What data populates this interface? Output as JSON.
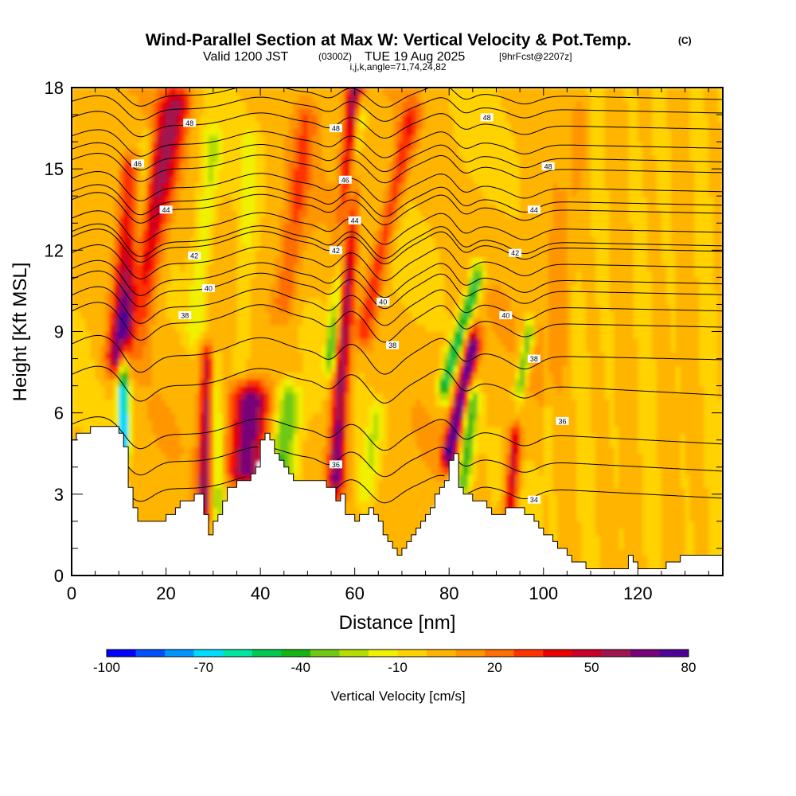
{
  "chart_data": {
    "type": "heatmap",
    "title": "Wind-Parallel Section at Max W: Vertical Velocity & Pot.Temp.",
    "title_mark": "(C)",
    "subtitle_prefix": "Valid 1200 JST",
    "subtitle_utc": "(0300Z)",
    "subtitle_date": "TUE 19 Aug 2025",
    "subtitle_fcst": "[9hrFcst@2207z]",
    "subtitle_line2": "i,j,k,angle=71,74,24,82",
    "xlabel": "Distance [nm]",
    "ylabel": "Height [Kft MSL]",
    "xlim": [
      0,
      138
    ],
    "ylim": [
      0,
      18
    ],
    "x_ticks": [
      "0",
      "20",
      "40",
      "60",
      "80",
      "100",
      "120"
    ],
    "y_ticks": [
      "0",
      "3",
      "6",
      "9",
      "12",
      "15",
      "18"
    ],
    "colorbar": {
      "label": "Vertical Velocity [cm/s]",
      "tick_labels": [
        "-100",
        "-70",
        "-40",
        "-10",
        "20",
        "50",
        "80"
      ],
      "colors": [
        "#0000ff",
        "#0050ff",
        "#0096ff",
        "#00dcff",
        "#00e6a0",
        "#00c850",
        "#14b414",
        "#6ec814",
        "#b4dc00",
        "#f0f000",
        "#ffd200",
        "#ffb400",
        "#ff9600",
        "#ff6e00",
        "#ff3200",
        "#eb0000",
        "#c80028",
        "#a01450",
        "#780078",
        "#50009a"
      ]
    },
    "terrain_kft": [
      [
        0,
        5.0
      ],
      [
        2,
        5.3
      ],
      [
        5,
        5.5
      ],
      [
        8,
        5.6
      ],
      [
        10,
        5.3
      ],
      [
        11,
        4.8
      ],
      [
        12,
        3.2
      ],
      [
        13,
        2.4
      ],
      [
        14,
        2.0
      ],
      [
        18,
        2.0
      ],
      [
        20,
        2.2
      ],
      [
        22,
        2.5
      ],
      [
        24,
        2.8
      ],
      [
        27,
        3.0
      ],
      [
        28,
        2.2
      ],
      [
        29,
        1.6
      ],
      [
        31,
        2.2
      ],
      [
        33,
        3.2
      ],
      [
        35,
        3.4
      ],
      [
        37,
        3.5
      ],
      [
        39,
        4.1
      ],
      [
        40,
        5.0
      ],
      [
        41,
        5.3
      ],
      [
        43,
        4.6
      ],
      [
        45,
        4.0
      ],
      [
        47,
        3.6
      ],
      [
        50,
        3.4
      ],
      [
        53,
        3.5
      ],
      [
        55,
        3.2
      ],
      [
        56,
        2.8
      ],
      [
        57,
        3.0
      ],
      [
        58,
        2.3
      ],
      [
        60,
        2.0
      ],
      [
        63,
        2.5
      ],
      [
        65,
        2.0
      ],
      [
        66,
        1.4
      ],
      [
        68,
        1.0
      ],
      [
        69,
        0.8
      ],
      [
        70,
        0.9
      ],
      [
        71,
        1.3
      ],
      [
        73,
        1.8
      ],
      [
        75,
        2.2
      ],
      [
        77,
        3.0
      ],
      [
        79,
        3.6
      ],
      [
        80,
        4.2
      ],
      [
        81,
        4.4
      ],
      [
        82,
        3.3
      ],
      [
        84,
        2.9
      ],
      [
        86,
        2.8
      ],
      [
        88,
        2.5
      ],
      [
        90,
        2.2
      ],
      [
        92,
        2.4
      ],
      [
        94,
        2.6
      ],
      [
        96,
        2.3
      ],
      [
        98,
        2.0
      ],
      [
        100,
        1.6
      ],
      [
        103,
        1.1
      ],
      [
        106,
        0.6
      ],
      [
        109,
        0.3
      ],
      [
        112,
        0.3
      ],
      [
        117,
        0.3
      ],
      [
        118,
        0.8
      ],
      [
        120,
        0.3
      ],
      [
        125,
        0.3
      ],
      [
        128,
        0.6
      ],
      [
        130,
        0.8
      ],
      [
        133,
        0.8
      ],
      [
        138,
        0.8
      ]
    ],
    "updrafts": [
      {
        "x0": 11,
        "x1": 22,
        "h0": 8,
        "h1": 17.5,
        "w": 3.5,
        "v": 55
      },
      {
        "x0": 28,
        "x1": 29,
        "h0": 2.5,
        "h1": 8,
        "w": 1.5,
        "v": 60
      },
      {
        "x0": 37,
        "x1": 38,
        "h0": 3.8,
        "h1": 6.5,
        "w": 4.0,
        "v": 70
      },
      {
        "x0": 56,
        "x1": 60,
        "h0": 3.5,
        "h1": 18,
        "w": 1.8,
        "v": 65
      },
      {
        "x0": 80,
        "x1": 85,
        "h0": 4.5,
        "h1": 8.5,
        "w": 1.6,
        "v": 75
      },
      {
        "x0": 93,
        "x1": 94,
        "h0": 2.5,
        "h1": 5,
        "w": 1.4,
        "v": 50
      },
      {
        "x0": 10,
        "x1": 12,
        "h0": 8,
        "h1": 15,
        "w": 2.0,
        "v": 35
      },
      {
        "x0": 62,
        "x1": 72,
        "h0": 9,
        "h1": 17,
        "w": 2.0,
        "v": 30
      },
      {
        "x0": 45,
        "x1": 50,
        "h0": 10,
        "h1": 17,
        "w": 2.5,
        "v": 22
      },
      {
        "x0": 100,
        "x1": 108,
        "h0": 7,
        "h1": 17,
        "w": 3.0,
        "v": 10
      }
    ],
    "downdrafts": [
      {
        "x0": 11,
        "x1": 11,
        "h0": 4.8,
        "h1": 8,
        "w": 1.2,
        "v": -80
      },
      {
        "x0": 13,
        "x1": 16,
        "h0": 8,
        "h1": 16,
        "w": 1.5,
        "v": -25
      },
      {
        "x0": 31,
        "x1": 30,
        "h0": 2.5,
        "h1": 8,
        "w": 1.5,
        "v": -30
      },
      {
        "x0": 44,
        "x1": 46,
        "h0": 3.5,
        "h1": 6.5,
        "w": 3.0,
        "v": -40
      },
      {
        "x0": 55,
        "x1": 61,
        "h0": 8,
        "h1": 17,
        "w": 1.3,
        "v": -50
      },
      {
        "x0": 62,
        "x1": 65,
        "h0": 3,
        "h1": 6,
        "w": 2.0,
        "v": -20
      },
      {
        "x0": 83,
        "x1": 85,
        "h0": 3.5,
        "h1": 6.5,
        "w": 1.5,
        "v": -45
      },
      {
        "x0": 79,
        "x1": 86,
        "h0": 7,
        "h1": 11,
        "w": 1.5,
        "v": -55
      },
      {
        "x0": 95,
        "x1": 97,
        "h0": 7,
        "h1": 9,
        "w": 1.2,
        "v": -40
      },
      {
        "x0": 26,
        "x1": 30,
        "h0": 9,
        "h1": 16,
        "w": 2.0,
        "v": -20
      },
      {
        "x0": 36,
        "x1": 38,
        "h0": 8,
        "h1": 16,
        "w": 2.0,
        "v": -15
      }
    ],
    "theta_contours": [
      {
        "base": 3.2,
        "label": "34",
        "lx": 98,
        "ly": 2.8
      },
      {
        "base": 4.2,
        "label": "36",
        "lx": 56,
        "ly": 4.1
      },
      {
        "base": 5.2,
        "label": "36",
        "lx": 104,
        "ly": 5.7
      },
      {
        "base": 7.0,
        "label": "38",
        "lx": 98,
        "ly": 8.0
      },
      {
        "base": 8.1,
        "label": "38",
        "lx": 68,
        "ly": 8.5
      },
      {
        "base": 9.3,
        "label": "40",
        "lx": 92,
        "ly": 9.6
      },
      {
        "base": 9.9,
        "label": "38",
        "lx": 24,
        "ly": 9.6
      },
      {
        "base": 10.5,
        "label": "40",
        "lx": 66,
        "ly": 10.1
      },
      {
        "base": 10.9,
        "label": "40",
        "lx": 29,
        "ly": 10.6
      },
      {
        "base": 11.5,
        "label": "42",
        "lx": 56,
        "ly": 12.0
      },
      {
        "base": 12.1,
        "label": "42",
        "lx": 94,
        "ly": 11.9
      },
      {
        "base": 12.3,
        "label": "42",
        "lx": 26,
        "ly": 11.8
      },
      {
        "base": 12.8,
        "label": "44",
        "lx": 60,
        "ly": 13.1
      },
      {
        "base": 13.5,
        "label": "44",
        "lx": 98,
        "ly": 13.5
      },
      {
        "base": 13.8,
        "label": "44",
        "lx": 20,
        "ly": 13.5
      },
      {
        "base": 14.3,
        "label": "46",
        "lx": 58,
        "ly": 14.6
      },
      {
        "base": 15.0,
        "label": "46",
        "lx": 14,
        "ly": 15.2
      },
      {
        "base": 15.4,
        "label": "48",
        "lx": 101,
        "ly": 15.1
      },
      {
        "base": 15.9,
        "label": "48",
        "lx": 56,
        "ly": 16.5
      },
      {
        "base": 16.6,
        "label": "48",
        "lx": 25,
        "ly": 16.7
      },
      {
        "base": 17.2,
        "label": "48",
        "lx": 88,
        "ly": 16.9
      },
      {
        "base": 17.7,
        "label": "",
        "lx": 0,
        "ly": 0
      }
    ]
  }
}
